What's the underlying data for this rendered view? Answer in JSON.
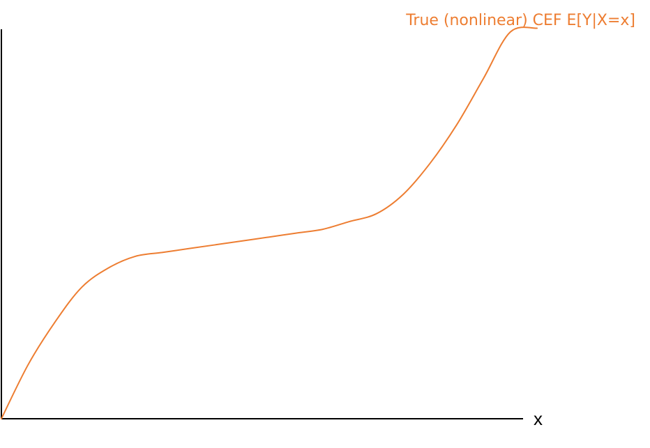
{
  "chart_data": {
    "type": "line",
    "title": "",
    "xlabel": "x",
    "ylabel": "",
    "xlim": [
      0,
      1
    ],
    "ylim": [
      0,
      1
    ],
    "grid": false,
    "legend": "none",
    "series": [
      {
        "name": "True (nonlinear) CEF E[Y|X=x]",
        "color": "#ED7D31",
        "x": [
          0,
          0.05,
          0.1,
          0.15,
          0.2,
          0.25,
          0.3,
          0.35,
          0.4,
          0.45,
          0.5,
          0.55,
          0.6,
          0.65,
          0.7,
          0.75,
          0.8,
          0.85,
          0.9,
          0.95,
          1.0
        ],
        "y": [
          0.0,
          0.14,
          0.25,
          0.34,
          0.39,
          0.42,
          0.43,
          0.44,
          0.45,
          0.46,
          0.47,
          0.48,
          0.49,
          0.51,
          0.53,
          0.58,
          0.66,
          0.76,
          0.88,
          1.0,
          1.01
        ]
      }
    ]
  }
}
